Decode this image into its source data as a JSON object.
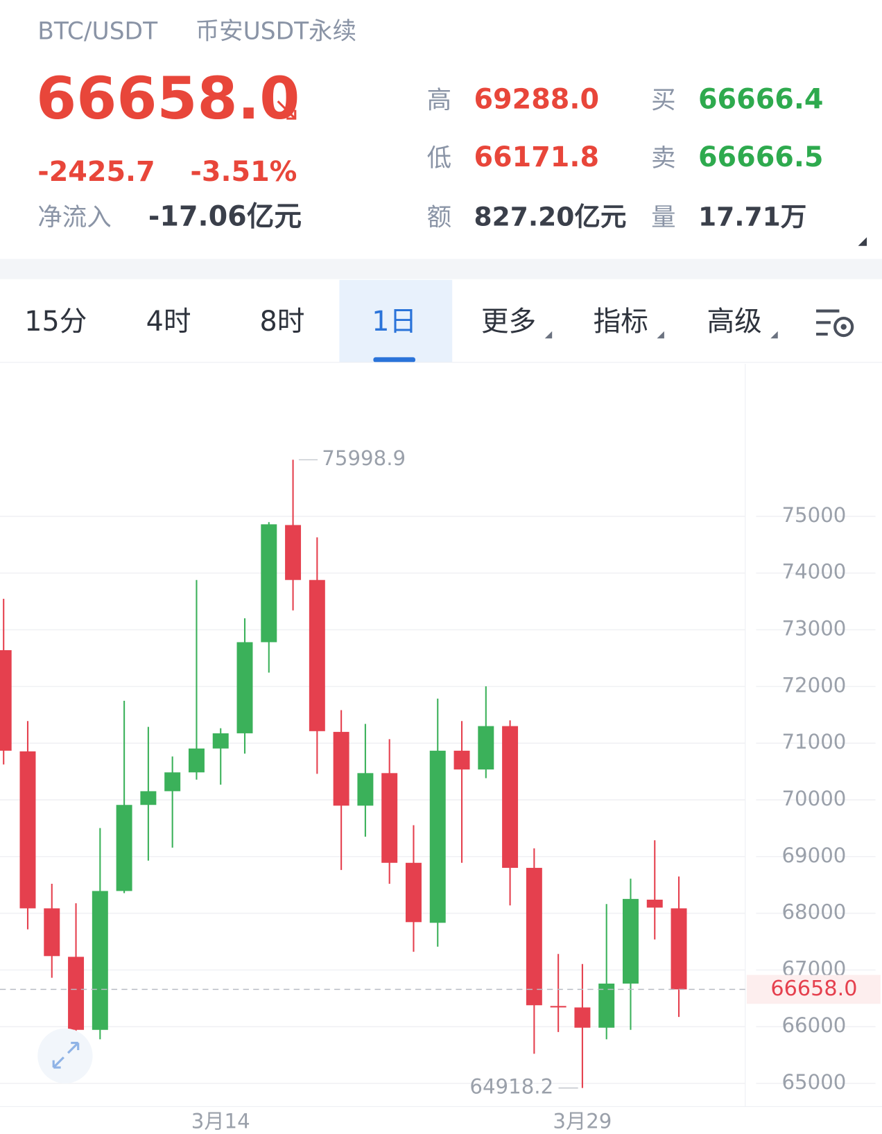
{
  "header": {
    "pair": "BTC/USDT",
    "market": "币安USDT永续",
    "price": "66658.0",
    "change": "-2425.7",
    "change_pct": "-3.51%",
    "net_inflow_label": "净流入",
    "net_inflow": "-17.06亿元",
    "stats": [
      {
        "label": "高",
        "value": "69288.0"
      },
      {
        "label": "低",
        "value": "66171.8"
      },
      {
        "label": "额",
        "value": "827.20亿元"
      },
      {
        "label": "买",
        "value": "66666.4"
      },
      {
        "label": "卖",
        "value": "66666.5"
      },
      {
        "label": "量",
        "value": "17.71万"
      }
    ]
  },
  "tabs": [
    "15分",
    "4时",
    "8时",
    "1日",
    "更多",
    "指标",
    "高级"
  ],
  "active_tab": 3,
  "chart_data": {
    "type": "candlestick",
    "categories": [
      null,
      null,
      null,
      null,
      null,
      null,
      null,
      null,
      null,
      "3月14",
      null,
      null,
      null,
      null,
      null,
      null,
      null,
      null,
      null,
      null,
      null,
      null,
      null,
      null,
      "3月29",
      null,
      null,
      null,
      null
    ],
    "open": [
      72640,
      70855,
      68087,
      67232,
      65944,
      68393,
      69911,
      70153,
      70485,
      70906,
      71174,
      72781,
      74847,
      73878,
      71199,
      69898,
      70472,
      68890,
      67832,
      70867,
      70536,
      71301,
      68801,
      66365,
      66339,
      65982,
      66760,
      68240,
      68087
    ],
    "high": [
      73546,
      71390,
      68520,
      68176,
      69503,
      71747,
      71288,
      70765,
      73878,
      71263,
      73202,
      74898,
      75998.9,
      74630,
      71582,
      71339,
      71071,
      69554,
      71786,
      71390,
      72003,
      71403,
      69145,
      67283,
      67105,
      68163,
      68610,
      69288,
      68648
    ],
    "low": [
      70625,
      67717,
      66862,
      65587,
      65778,
      68355,
      68929,
      69158,
      70357,
      70268,
      70816,
      72245,
      73342,
      70459,
      68763,
      69350,
      68520,
      67321,
      67411,
      68890,
      70383,
      68138,
      65523,
      65906,
      64918.2,
      65778,
      65944,
      67538,
      66171.8
    ],
    "close": [
      70867,
      68087,
      67245,
      65944,
      68393,
      69911,
      70153,
      70485,
      70906,
      71174,
      72781,
      74860,
      73878,
      71212,
      69898,
      70472,
      68890,
      67844,
      70867,
      70536,
      71301,
      68801,
      66378,
      66352,
      65982,
      66760,
      68253,
      68100,
      66658
    ],
    "up_color": "#3bb15a",
    "down_color": "#e5404e",
    "ylim": [
      64592,
      77691
    ],
    "yticks": [
      65000,
      66000,
      67000,
      68000,
      69000,
      70000,
      71000,
      72000,
      73000,
      74000,
      75000
    ],
    "grid": true,
    "last_price": {
      "value": 66658.0,
      "label": "66658.0"
    }
  }
}
